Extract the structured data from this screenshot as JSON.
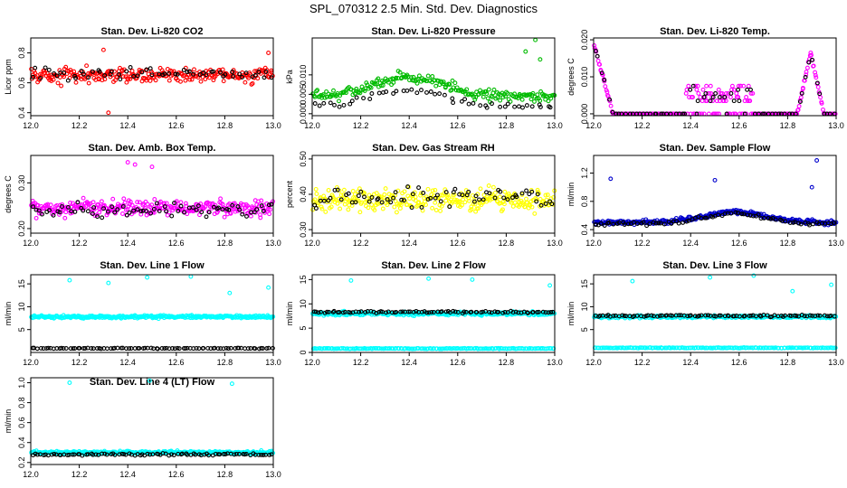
{
  "page": {
    "title": "SPL_070312  2.5 Min. Std. Dev. Diagnostics"
  },
  "colors": {
    "overlay": "#000000",
    "frame": "#000000"
  },
  "chart_data": [
    {
      "id": "co2",
      "type": "scatter",
      "title": "Stan. Dev. Li-820 CO2",
      "xlabel": "",
      "ylabel": "Licor ppm",
      "xlim": [
        12.0,
        13.0
      ],
      "ylim": [
        0.38,
        0.9
      ],
      "xticks": [
        12.0,
        12.2,
        12.4,
        12.6,
        12.8,
        13.0
      ],
      "xtick_labels": [
        "12.0",
        "12.2",
        "12.4",
        "12.6",
        "12.8",
        "13.0"
      ],
      "yticks": [
        0.4,
        0.6,
        0.8
      ],
      "ytick_labels": [
        "0.4",
        "0.6",
        "0.8"
      ],
      "series": [
        {
          "name": "main",
          "color": "#ff0000",
          "pattern": "noise",
          "base": 0.65,
          "spread": 0.08,
          "n": 260,
          "outliers": [
            [
              12.3,
              0.82
            ],
            [
              12.32,
              0.4
            ],
            [
              12.98,
              0.8
            ]
          ]
        },
        {
          "name": "overlay",
          "color": "#000000",
          "pattern": "noise",
          "base": 0.66,
          "spread": 0.06,
          "n": 60,
          "outliers": []
        }
      ]
    },
    {
      "id": "press",
      "type": "scatter",
      "title": "Stan. Dev. Li-820 Pressure",
      "xlabel": "",
      "ylabel": "kPa",
      "xlim": [
        12.0,
        13.0
      ],
      "ylim": [
        -0.0005,
        0.0195
      ],
      "xticks": [
        12.0,
        12.2,
        12.4,
        12.6,
        12.8,
        13.0
      ],
      "xtick_labels": [
        "12.0",
        "12.2",
        "12.4",
        "12.6",
        "12.8",
        "13.0"
      ],
      "yticks": [
        0.0,
        0.005,
        0.01
      ],
      "ytick_labels": [
        "0.000",
        "0.005",
        "0.010"
      ],
      "series": [
        {
          "name": "main",
          "color": "#00bb00",
          "pattern": "hump",
          "base": 0.0045,
          "amp": 0.005,
          "center": 12.4,
          "width": 0.2,
          "spread": 0.0022,
          "n": 220,
          "outliers": [
            [
              12.92,
              0.019
            ],
            [
              12.88,
              0.016
            ],
            [
              12.94,
              0.014
            ]
          ]
        },
        {
          "name": "overlay",
          "color": "#000000",
          "pattern": "hump",
          "base": 0.002,
          "amp": 0.004,
          "center": 12.4,
          "width": 0.2,
          "spread": 0.0015,
          "n": 50,
          "outliers": []
        }
      ]
    },
    {
      "id": "temp",
      "type": "scatter",
      "title": "Stan. Dev. Li-820 Temp.",
      "xlabel": "",
      "ylabel": "degrees C",
      "xlim": [
        12.0,
        13.0
      ],
      "ylim": [
        -0.0005,
        0.0205
      ],
      "xticks": [
        12.0,
        12.2,
        12.4,
        12.6,
        12.8,
        13.0
      ],
      "xtick_labels": [
        "12.0",
        "12.2",
        "12.4",
        "12.6",
        "12.8",
        "13.0"
      ],
      "yticks": [
        0.0,
        0.01,
        0.02
      ],
      "ytick_labels": [
        "0.000",
        "0.010",
        "0.020"
      ],
      "series": [
        {
          "name": "main",
          "color": "#ff00ff",
          "pattern": "temp",
          "n": 300,
          "outliers": []
        },
        {
          "name": "overlay",
          "color": "#000000",
          "pattern": "temp",
          "n": 70,
          "outliers": []
        }
      ]
    },
    {
      "id": "box",
      "type": "scatter",
      "title": "Stan. Dev. Amb. Box Temp.",
      "xlabel": "",
      "ylabel": "degrees C",
      "xlim": [
        12.0,
        13.0
      ],
      "ylim": [
        0.19,
        0.36
      ],
      "xticks": [
        12.0,
        12.2,
        12.4,
        12.6,
        12.8,
        13.0
      ],
      "xtick_labels": [
        "12.0",
        "12.2",
        "12.4",
        "12.6",
        "12.8",
        "13.0"
      ],
      "yticks": [
        0.2,
        0.3
      ],
      "ytick_labels": [
        "0.20",
        "0.30"
      ],
      "series": [
        {
          "name": "main",
          "color": "#ff00ff",
          "pattern": "noise",
          "base": 0.245,
          "spread": 0.03,
          "n": 300,
          "outliers": [
            [
              12.4,
              0.345
            ],
            [
              12.43,
              0.34
            ],
            [
              12.5,
              0.335
            ]
          ]
        },
        {
          "name": "overlay",
          "color": "#000000",
          "pattern": "noise",
          "base": 0.24,
          "spread": 0.025,
          "n": 70,
          "outliers": []
        }
      ]
    },
    {
      "id": "rh",
      "type": "scatter",
      "title": "Stan. Dev. Gas Stream RH",
      "xlabel": "",
      "ylabel": "percent",
      "xlim": [
        12.0,
        13.0
      ],
      "ylim": [
        0.29,
        0.51
      ],
      "xticks": [
        12.0,
        12.2,
        12.4,
        12.6,
        12.8,
        13.0
      ],
      "xtick_labels": [
        "12.0",
        "12.2",
        "12.4",
        "12.6",
        "12.8",
        "13.0"
      ],
      "yticks": [
        0.3,
        0.4,
        0.5
      ],
      "ytick_labels": [
        "0.30",
        "0.40",
        "0.50"
      ],
      "series": [
        {
          "name": "main",
          "color": "#ffff00",
          "pattern": "noise",
          "base": 0.385,
          "spread": 0.05,
          "n": 300,
          "outliers": []
        },
        {
          "name": "overlay",
          "color": "#000000",
          "pattern": "noise",
          "base": 0.39,
          "spread": 0.045,
          "n": 70,
          "outliers": []
        }
      ]
    },
    {
      "id": "flow",
      "type": "scatter",
      "title": "Stan. Dev. Sample Flow",
      "xlabel": "",
      "ylabel": "ml/min",
      "xlim": [
        12.0,
        13.0
      ],
      "ylim": [
        0.35,
        1.45
      ],
      "xticks": [
        12.0,
        12.2,
        12.4,
        12.6,
        12.8,
        13.0
      ],
      "xtick_labels": [
        "12.0",
        "12.2",
        "12.4",
        "12.6",
        "12.8",
        "13.0"
      ],
      "yticks": [
        0.4,
        0.8,
        1.2
      ],
      "ytick_labels": [
        "0.4",
        "0.8",
        "1.2"
      ],
      "series": [
        {
          "name": "main",
          "color": "#0000cc",
          "pattern": "hump",
          "base": 0.5,
          "amp": 0.15,
          "center": 12.58,
          "width": 0.18,
          "spread": 0.05,
          "n": 300,
          "outliers": [
            [
              12.07,
              1.12
            ],
            [
              12.5,
              1.1
            ],
            [
              12.9,
              1.0
            ],
            [
              12.92,
              1.38
            ]
          ]
        },
        {
          "name": "overlay",
          "color": "#000000",
          "pattern": "hump",
          "base": 0.48,
          "amp": 0.15,
          "center": 12.58,
          "width": 0.18,
          "spread": 0.04,
          "n": 80,
          "outliers": []
        }
      ]
    },
    {
      "id": "l1",
      "type": "scatter",
      "title": "Stan. Dev. Line 1 Flow",
      "xlabel": "",
      "ylabel": "ml/min",
      "xlim": [
        12.0,
        13.0
      ],
      "ylim": [
        0,
        17
      ],
      "xticks": [
        12.0,
        12.2,
        12.4,
        12.6,
        12.8,
        13.0
      ],
      "xtick_labels": [
        "12.0",
        "12.2",
        "12.4",
        "12.6",
        "12.8",
        "13.0"
      ],
      "yticks": [
        5,
        10,
        15
      ],
      "ytick_labels": [
        "5",
        "10",
        "15"
      ],
      "series": [
        {
          "name": "main",
          "color": "#00ffff",
          "pattern": "band",
          "base": 7.8,
          "spread": 0.5,
          "n": 320,
          "outliers": [
            [
              12.16,
              15.8
            ],
            [
              12.32,
              15.2
            ],
            [
              12.48,
              16.4
            ],
            [
              12.66,
              16.6
            ],
            [
              12.82,
              13.0
            ],
            [
              12.98,
              14.2
            ]
          ]
        },
        {
          "name": "overlay",
          "color": "#000000",
          "pattern": "band",
          "base": 0.9,
          "spread": 0.15,
          "n": 90,
          "outliers": []
        }
      ]
    },
    {
      "id": "l2",
      "type": "scatter",
      "title": "Stan. Dev. Line 2 Flow",
      "xlabel": "",
      "ylabel": "ml/min",
      "xlim": [
        12.0,
        13.0
      ],
      "ylim": [
        0,
        16
      ],
      "xticks": [
        12.0,
        12.2,
        12.4,
        12.6,
        12.8,
        13.0
      ],
      "xtick_labels": [
        "12.0",
        "12.2",
        "12.4",
        "12.6",
        "12.8",
        "13.0"
      ],
      "yticks": [
        0,
        5,
        10,
        15
      ],
      "ytick_labels": [
        "0",
        "5",
        "10",
        "15"
      ],
      "series": [
        {
          "name": "main",
          "color": "#00ffff",
          "pattern": "band",
          "base": 8.0,
          "spread": 0.6,
          "n": 320,
          "outliers": [
            [
              12.16,
              14.8
            ],
            [
              12.48,
              15.2
            ],
            [
              12.66,
              15.0
            ],
            [
              12.98,
              13.8
            ]
          ]
        },
        {
          "name": "lower",
          "color": "#00ffff",
          "pattern": "band",
          "base": 0.8,
          "spread": 0.12,
          "n": 160,
          "outliers": []
        },
        {
          "name": "overlay",
          "color": "#000000",
          "pattern": "band",
          "base": 8.3,
          "spread": 0.35,
          "n": 90,
          "outliers": []
        }
      ]
    },
    {
      "id": "l3",
      "type": "scatter",
      "title": "Stan. Dev. Line 3 Flow",
      "xlabel": "",
      "ylabel": "ml/min",
      "xlim": [
        12.0,
        13.0
      ],
      "ylim": [
        0,
        17
      ],
      "xticks": [
        12.0,
        12.2,
        12.4,
        12.6,
        12.8,
        13.0
      ],
      "xtick_labels": [
        "12.0",
        "12.2",
        "12.4",
        "12.6",
        "12.8",
        "13.0"
      ],
      "yticks": [
        5,
        10,
        15
      ],
      "ytick_labels": [
        "5",
        "10",
        "15"
      ],
      "series": [
        {
          "name": "main",
          "color": "#00ffff",
          "pattern": "band",
          "base": 7.8,
          "spread": 0.5,
          "n": 300,
          "outliers": [
            [
              12.16,
              15.6
            ],
            [
              12.48,
              16.4
            ],
            [
              12.66,
              16.8
            ],
            [
              12.82,
              13.4
            ],
            [
              12.98,
              14.8
            ]
          ]
        },
        {
          "name": "lower",
          "color": "#00ffff",
          "pattern": "band",
          "base": 1.0,
          "spread": 0.12,
          "n": 160,
          "outliers": []
        },
        {
          "name": "overlay",
          "color": "#000000",
          "pattern": "band",
          "base": 8.0,
          "spread": 0.3,
          "n": 90,
          "outliers": []
        }
      ]
    },
    {
      "id": "l4",
      "type": "scatter",
      "title": "Stan. Dev. Line 4 (LT) Flow",
      "xlabel": "",
      "ylabel": "ml/min",
      "xlim": [
        12.0,
        13.0
      ],
      "ylim": [
        0.18,
        1.05
      ],
      "xticks": [
        12.0,
        12.2,
        12.4,
        12.6,
        12.8,
        13.0
      ],
      "xtick_labels": [
        "12.0",
        "12.2",
        "12.4",
        "12.6",
        "12.8",
        "13.0"
      ],
      "yticks": [
        0.2,
        0.4,
        0.6,
        0.8,
        1.0
      ],
      "ytick_labels": [
        "0.2",
        "0.4",
        "0.6",
        "0.8",
        "1.0"
      ],
      "series": [
        {
          "name": "main",
          "color": "#00ffff",
          "pattern": "band",
          "base": 0.3,
          "spread": 0.025,
          "n": 340,
          "outliers": [
            [
              12.16,
              1.0
            ],
            [
              12.49,
              1.02
            ],
            [
              12.83,
              0.99
            ]
          ]
        },
        {
          "name": "overlay",
          "color": "#000000",
          "pattern": "band",
          "base": 0.28,
          "spread": 0.02,
          "n": 90,
          "outliers": []
        }
      ]
    }
  ]
}
